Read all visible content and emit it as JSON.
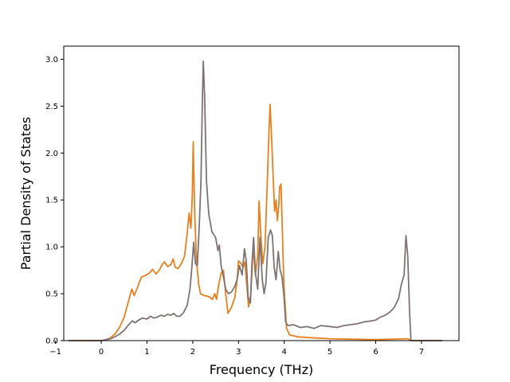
{
  "chart_data": {
    "type": "line",
    "title": "",
    "xlabel": "Frequency (THz)",
    "ylabel": "Partial Density of States",
    "xlim": [
      -0.82,
      7.82
    ],
    "ylim": [
      0.0,
      3.14
    ],
    "xticks": [
      -1,
      0,
      1,
      2,
      3,
      4,
      5,
      6,
      7
    ],
    "xtick_labels": [
      "−1",
      "0",
      "1",
      "2",
      "3",
      "4",
      "5",
      "6",
      "7"
    ],
    "yticks": [
      0.0,
      0.5,
      1.0,
      1.5,
      2.0,
      2.5,
      3.0
    ],
    "ytick_labels": [
      "0.0",
      "0.5",
      "1.0",
      "1.5",
      "2.0",
      "2.5",
      "3.0"
    ],
    "grid": false,
    "legend": "none",
    "series": [
      {
        "color": "#e8801f",
        "points": [
          [
            -0.72,
            0.0
          ],
          [
            0.0,
            0.0
          ],
          [
            0.1,
            0.01
          ],
          [
            0.2,
            0.03
          ],
          [
            0.3,
            0.07
          ],
          [
            0.4,
            0.14
          ],
          [
            0.5,
            0.25
          ],
          [
            0.6,
            0.43
          ],
          [
            0.67,
            0.55
          ],
          [
            0.72,
            0.48
          ],
          [
            0.8,
            0.58
          ],
          [
            0.88,
            0.68
          ],
          [
            0.95,
            0.69
          ],
          [
            1.05,
            0.72
          ],
          [
            1.12,
            0.76
          ],
          [
            1.2,
            0.71
          ],
          [
            1.28,
            0.76
          ],
          [
            1.33,
            0.81
          ],
          [
            1.38,
            0.84
          ],
          [
            1.45,
            0.79
          ],
          [
            1.52,
            0.81
          ],
          [
            1.57,
            0.87
          ],
          [
            1.62,
            0.78
          ],
          [
            1.68,
            0.77
          ],
          [
            1.75,
            0.82
          ],
          [
            1.82,
            0.9
          ],
          [
            1.88,
            1.15
          ],
          [
            1.92,
            1.36
          ],
          [
            1.96,
            1.2
          ],
          [
            1.99,
            1.55
          ],
          [
            2.01,
            2.12
          ],
          [
            2.04,
            1.4
          ],
          [
            2.07,
            0.99
          ],
          [
            2.1,
            0.75
          ],
          [
            2.13,
            0.6
          ],
          [
            2.17,
            0.5
          ],
          [
            2.25,
            0.48
          ],
          [
            2.35,
            0.47
          ],
          [
            2.43,
            0.44
          ],
          [
            2.48,
            0.5
          ],
          [
            2.52,
            0.44
          ],
          [
            2.56,
            0.58
          ],
          [
            2.62,
            0.72
          ],
          [
            2.67,
            0.75
          ],
          [
            2.72,
            0.5
          ],
          [
            2.77,
            0.29
          ],
          [
            2.85,
            0.36
          ],
          [
            2.92,
            0.46
          ],
          [
            2.97,
            0.65
          ],
          [
            3.0,
            0.85
          ],
          [
            3.06,
            0.82
          ],
          [
            3.1,
            0.78
          ],
          [
            3.14,
            0.84
          ],
          [
            3.18,
            0.6
          ],
          [
            3.22,
            0.36
          ],
          [
            3.27,
            0.5
          ],
          [
            3.32,
            1.0
          ],
          [
            3.37,
            0.7
          ],
          [
            3.42,
            0.9
          ],
          [
            3.45,
            1.49
          ],
          [
            3.49,
            1.1
          ],
          [
            3.53,
            0.82
          ],
          [
            3.58,
            1.0
          ],
          [
            3.63,
            1.7
          ],
          [
            3.67,
            2.28
          ],
          [
            3.69,
            2.52
          ],
          [
            3.72,
            2.2
          ],
          [
            3.76,
            1.72
          ],
          [
            3.79,
            1.38
          ],
          [
            3.82,
            1.5
          ],
          [
            3.85,
            1.28
          ],
          [
            3.88,
            1.44
          ],
          [
            3.9,
            1.64
          ],
          [
            3.93,
            1.67
          ],
          [
            3.96,
            1.15
          ],
          [
            3.99,
            0.62
          ],
          [
            4.05,
            0.13
          ],
          [
            4.12,
            0.06
          ],
          [
            4.3,
            0.04
          ],
          [
            4.6,
            0.03
          ],
          [
            5.0,
            0.02
          ],
          [
            6.0,
            0.01
          ],
          [
            6.7,
            0.02
          ],
          [
            6.78,
            0.0
          ],
          [
            7.45,
            0.0
          ]
        ]
      },
      {
        "color": "#7f7474",
        "points": [
          [
            -0.72,
            0.0
          ],
          [
            0.0,
            0.0
          ],
          [
            0.1,
            0.01
          ],
          [
            0.2,
            0.02
          ],
          [
            0.3,
            0.04
          ],
          [
            0.4,
            0.07
          ],
          [
            0.5,
            0.11
          ],
          [
            0.6,
            0.17
          ],
          [
            0.68,
            0.21
          ],
          [
            0.74,
            0.19
          ],
          [
            0.82,
            0.22
          ],
          [
            0.9,
            0.24
          ],
          [
            1.0,
            0.23
          ],
          [
            1.08,
            0.26
          ],
          [
            1.15,
            0.24
          ],
          [
            1.22,
            0.25
          ],
          [
            1.3,
            0.27
          ],
          [
            1.38,
            0.26
          ],
          [
            1.45,
            0.28
          ],
          [
            1.52,
            0.27
          ],
          [
            1.58,
            0.29
          ],
          [
            1.65,
            0.26
          ],
          [
            1.72,
            0.26
          ],
          [
            1.8,
            0.3
          ],
          [
            1.88,
            0.38
          ],
          [
            1.94,
            0.55
          ],
          [
            1.98,
            0.78
          ],
          [
            2.02,
            1.05
          ],
          [
            2.06,
            0.82
          ],
          [
            2.1,
            0.8
          ],
          [
            2.14,
            1.2
          ],
          [
            2.18,
            1.7
          ],
          [
            2.21,
            2.55
          ],
          [
            2.23,
            2.98
          ],
          [
            2.26,
            2.6
          ],
          [
            2.3,
            1.7
          ],
          [
            2.35,
            1.35
          ],
          [
            2.42,
            1.16
          ],
          [
            2.5,
            1.1
          ],
          [
            2.55,
            0.96
          ],
          [
            2.58,
            1.02
          ],
          [
            2.62,
            0.8
          ],
          [
            2.67,
            0.68
          ],
          [
            2.72,
            0.55
          ],
          [
            2.78,
            0.5
          ],
          [
            2.85,
            0.52
          ],
          [
            2.92,
            0.58
          ],
          [
            2.97,
            0.65
          ],
          [
            3.02,
            0.8
          ],
          [
            3.08,
            0.7
          ],
          [
            3.13,
            0.98
          ],
          [
            3.17,
            0.85
          ],
          [
            3.21,
            0.46
          ],
          [
            3.26,
            0.4
          ],
          [
            3.29,
            0.78
          ],
          [
            3.33,
            1.1
          ],
          [
            3.37,
            0.72
          ],
          [
            3.42,
            0.55
          ],
          [
            3.47,
            1.1
          ],
          [
            3.52,
            0.65
          ],
          [
            3.56,
            0.5
          ],
          [
            3.6,
            0.62
          ],
          [
            3.65,
            1.1
          ],
          [
            3.7,
            1.18
          ],
          [
            3.74,
            1.12
          ],
          [
            3.78,
            0.78
          ],
          [
            3.82,
            0.65
          ],
          [
            3.87,
            0.95
          ],
          [
            3.91,
            0.75
          ],
          [
            3.95,
            0.68
          ],
          [
            3.99,
            0.5
          ],
          [
            4.03,
            0.2
          ],
          [
            4.08,
            0.16
          ],
          [
            4.2,
            0.17
          ],
          [
            4.35,
            0.14
          ],
          [
            4.5,
            0.15
          ],
          [
            4.65,
            0.13
          ],
          [
            4.8,
            0.16
          ],
          [
            5.0,
            0.15
          ],
          [
            5.15,
            0.14
          ],
          [
            5.3,
            0.16
          ],
          [
            5.45,
            0.17
          ],
          [
            5.6,
            0.18
          ],
          [
            5.75,
            0.2
          ],
          [
            5.9,
            0.21
          ],
          [
            6.0,
            0.22
          ],
          [
            6.1,
            0.25
          ],
          [
            6.2,
            0.27
          ],
          [
            6.3,
            0.3
          ],
          [
            6.4,
            0.35
          ],
          [
            6.5,
            0.45
          ],
          [
            6.56,
            0.6
          ],
          [
            6.62,
            0.7
          ],
          [
            6.66,
            1.12
          ],
          [
            6.7,
            0.9
          ],
          [
            6.74,
            0.3
          ],
          [
            6.77,
            0.0
          ],
          [
            7.45,
            0.0
          ]
        ]
      }
    ]
  }
}
